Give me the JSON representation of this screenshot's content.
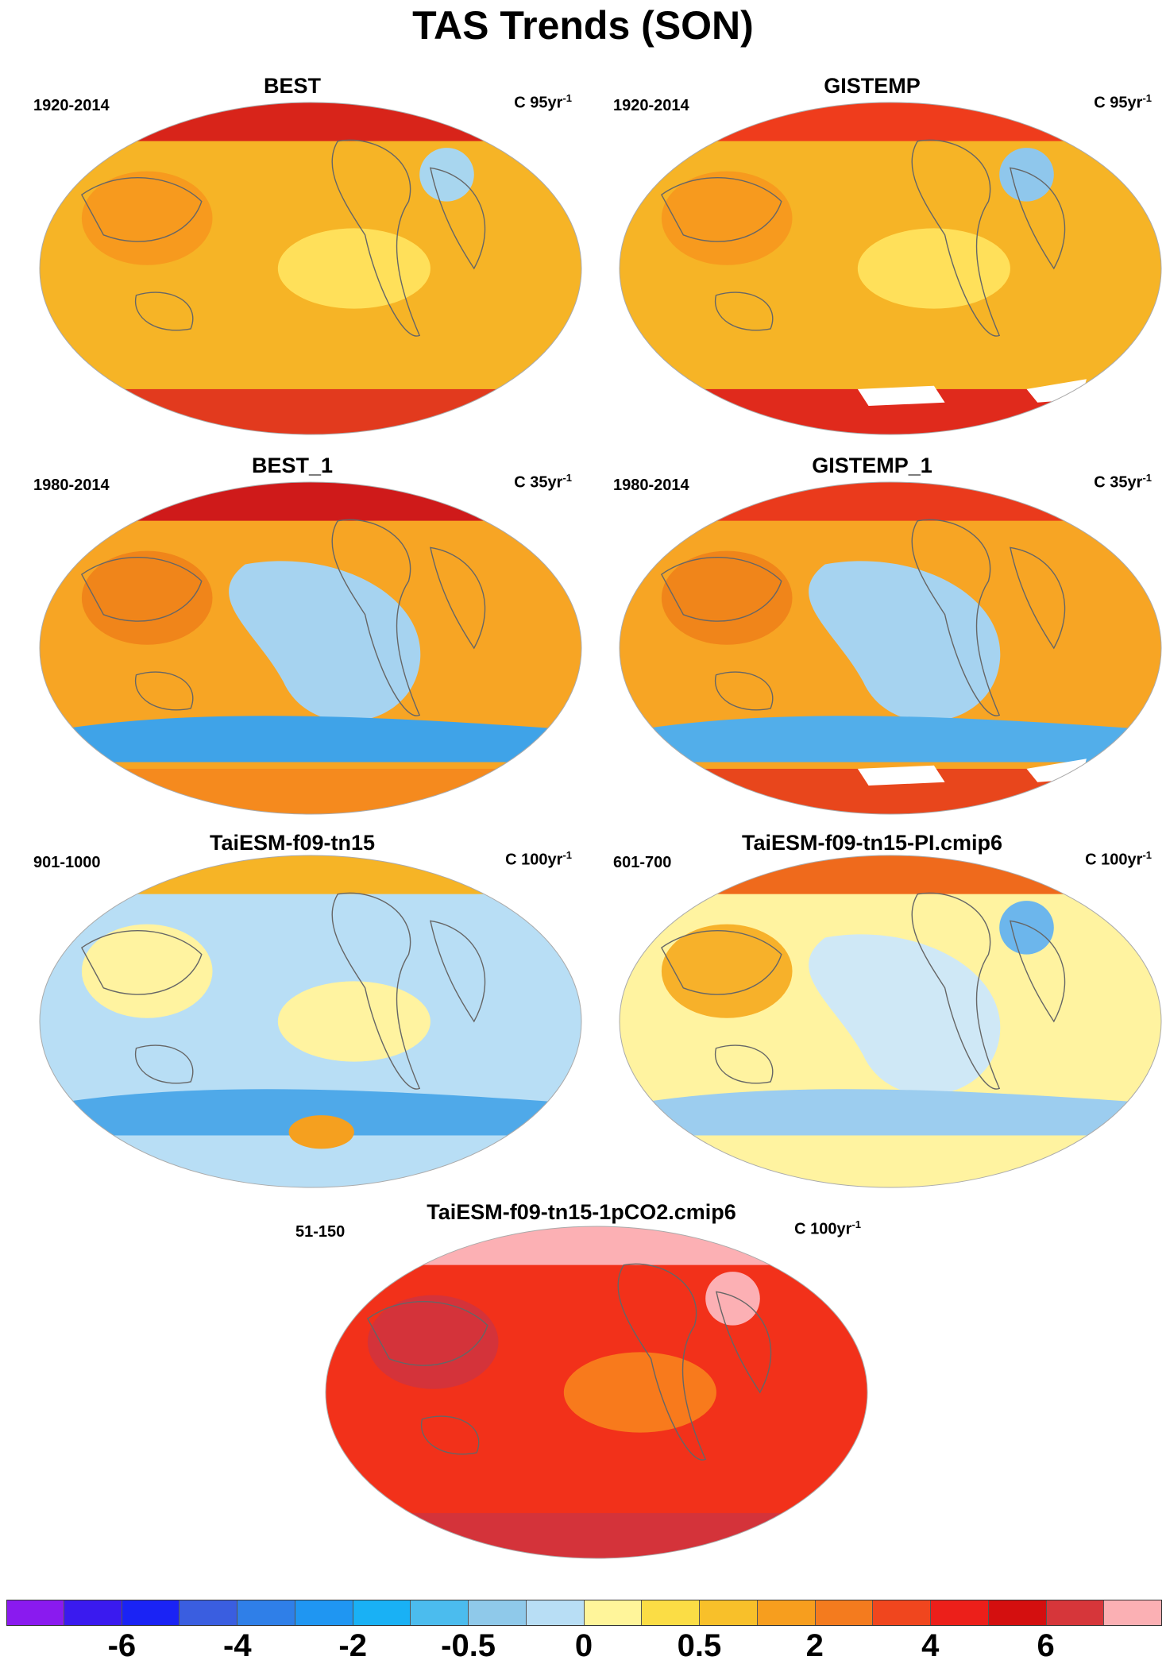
{
  "title": "TAS Trends (SON)",
  "panels": [
    {
      "id": "best",
      "title": "BEST",
      "period": "1920-2014",
      "units": "C 95yr",
      "units_exp": "-1",
      "base": "#f6b426",
      "features": [
        {
          "shape": "arctic",
          "color": "#d8241a"
        },
        {
          "shape": "antarctic",
          "color": "#e23a1e"
        },
        {
          "shape": "blob-a",
          "color": "#ffe05a"
        },
        {
          "shape": "blob-b",
          "color": "#f79a1e"
        },
        {
          "shape": "blob-c",
          "color": "#a8d6ef"
        }
      ]
    },
    {
      "id": "gistemp",
      "title": "GISTEMP",
      "period": "1920-2014",
      "units": "C 95yr",
      "units_exp": "-1",
      "base": "#f6b426",
      "features": [
        {
          "shape": "arctic",
          "color": "#ef3c1c"
        },
        {
          "shape": "antarctic",
          "color": "#e02a1c"
        },
        {
          "shape": "blob-a",
          "color": "#ffe05a"
        },
        {
          "shape": "blob-b",
          "color": "#f79a1e"
        },
        {
          "shape": "blob-c",
          "color": "#8fc7ec"
        },
        {
          "shape": "missing",
          "color": "#ffffff"
        }
      ]
    },
    {
      "id": "best1",
      "title": "BEST_1",
      "period": "1980-2014",
      "units": "C 35yr",
      "units_exp": "-1",
      "base": "#f7a524",
      "features": [
        {
          "shape": "arctic",
          "color": "#cf1a1a"
        },
        {
          "shape": "antarctic",
          "color": "#f58a1e"
        },
        {
          "shape": "pacific",
          "color": "#a6d3f0"
        },
        {
          "shape": "southern",
          "color": "#3fa3e8"
        },
        {
          "shape": "blob-b",
          "color": "#f0851a"
        }
      ]
    },
    {
      "id": "gistemp1",
      "title": "GISTEMP_1",
      "period": "1980-2014",
      "units": "C 35yr",
      "units_exp": "-1",
      "base": "#f7a524",
      "features": [
        {
          "shape": "arctic",
          "color": "#ea3a1c"
        },
        {
          "shape": "antarctic",
          "color": "#e8461c"
        },
        {
          "shape": "pacific",
          "color": "#a6d3f0"
        },
        {
          "shape": "southern",
          "color": "#52aeea"
        },
        {
          "shape": "blob-b",
          "color": "#f0851a"
        },
        {
          "shape": "missing",
          "color": "#ffffff"
        }
      ]
    },
    {
      "id": "taiesm",
      "title": "TaiESM-f09-tn15",
      "period": "901-1000",
      "units": "C 100yr",
      "units_exp": "-1",
      "base": "#b8def5",
      "features": [
        {
          "shape": "arctic",
          "color": "#f6b426"
        },
        {
          "shape": "blob-a",
          "color": "#fff3a0"
        },
        {
          "shape": "blob-b",
          "color": "#fff3a0"
        },
        {
          "shape": "southern",
          "color": "#4fa9e9"
        },
        {
          "shape": "blob-d",
          "color": "#f5a01f"
        }
      ]
    },
    {
      "id": "taiesmpi",
      "title": "TaiESM-f09-tn15-PI.cmip6",
      "period": "601-700",
      "units": "C 100yr",
      "units_exp": "-1",
      "base": "#fff3a0",
      "features": [
        {
          "shape": "arctic",
          "color": "#ef6a1c"
        },
        {
          "shape": "blob-b",
          "color": "#f7b12a"
        },
        {
          "shape": "blob-c",
          "color": "#6cb6ec"
        },
        {
          "shape": "pacific",
          "color": "#cfe8f6"
        },
        {
          "shape": "southern",
          "color": "#9ccdef"
        }
      ]
    },
    {
      "id": "taiesmco2",
      "title": "TaiESM-f09-tn15-1pCO2.cmip6",
      "period": "51-150",
      "units": "C 100yr",
      "units_exp": "-1",
      "base": "#f2311a",
      "features": [
        {
          "shape": "arctic",
          "color": "#fcb0b4"
        },
        {
          "shape": "blob-b",
          "color": "#d4333a"
        },
        {
          "shape": "blob-a",
          "color": "#f87a1c"
        },
        {
          "shape": "antarctic",
          "color": "#d4333a"
        },
        {
          "shape": "blob-c",
          "color": "#fcb0b4"
        }
      ]
    }
  ],
  "colorbar": {
    "colors": [
      "#8a1aef",
      "#3a1aef",
      "#1a23f5",
      "#3a5ee0",
      "#2f7fe8",
      "#1f96f2",
      "#19b1f5",
      "#4bbcee",
      "#8fc9ea",
      "#b8def5",
      "#fff59a",
      "#fbdd45",
      "#f8c02a",
      "#f79e1e",
      "#f47b1e",
      "#f0461e",
      "#ec1f1a",
      "#d40f0f",
      "#d6363a",
      "#fbb0b4"
    ],
    "tick_labels": [
      "-6",
      "-4",
      "-2",
      "-0.5",
      "0",
      "0.5",
      "2",
      "4",
      "6"
    ],
    "tick_boundaries": [
      2,
      4,
      6,
      8,
      10,
      12,
      14,
      16,
      18
    ]
  }
}
